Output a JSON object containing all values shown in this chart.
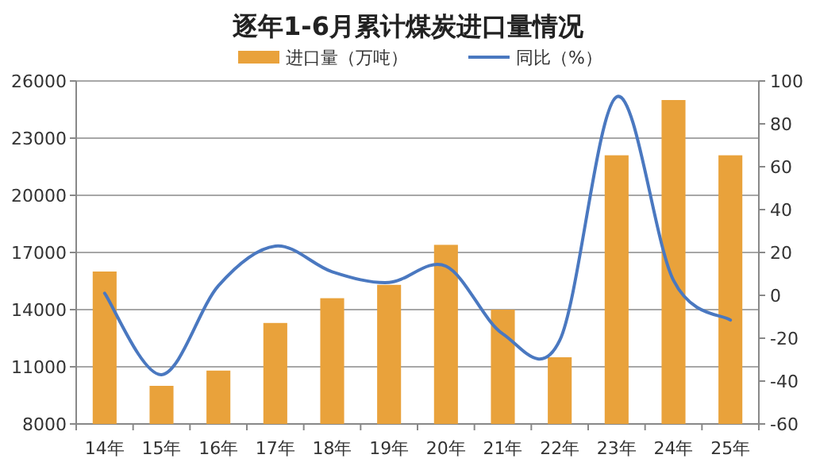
{
  "chart_data": {
    "type": "bar",
    "title": "逐年1-6月累计煤炭进口量情况",
    "categories": [
      "14年",
      "15年",
      "16年",
      "17年",
      "18年",
      "19年",
      "20年",
      "21年",
      "22年",
      "23年",
      "24年",
      "25年"
    ],
    "series": [
      {
        "name": "进口量（万吨）",
        "color": "#e9a23b",
        "values": [
          16000,
          10000,
          10800,
          13300,
          14600,
          15300,
          17400,
          14000,
          11500,
          22100,
          25000,
          22100
        ]
      },
      {
        "name": "同比（%）",
        "type": "line",
        "axis": "y2",
        "color": "#4a78c0",
        "values": [
          1,
          -37,
          4.5,
          23,
          11,
          6,
          13.6,
          -18,
          -21,
          92.6,
          7,
          -11.5
        ]
      }
    ],
    "ylim": [
      8000,
      26000
    ],
    "yticks": [
      8000,
      11000,
      14000,
      17000,
      20000,
      23000,
      26000
    ],
    "y2lim": [
      -60,
      100
    ],
    "y2ticks": [
      -60,
      -40,
      -20,
      0,
      20,
      40,
      60,
      80,
      100
    ],
    "grid": "y",
    "legend": "top",
    "marker": "none",
    "line_style": "solid"
  }
}
